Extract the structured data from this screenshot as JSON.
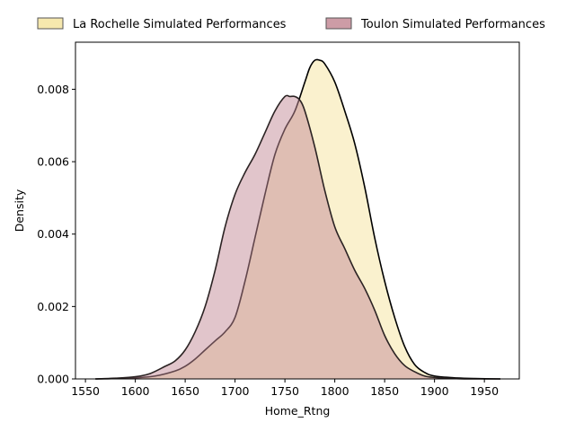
{
  "chart_data": {
    "type": "area",
    "xlabel": "Home_Rtng",
    "ylabel": "Density",
    "xlim": [
      1540,
      1985
    ],
    "ylim": [
      0,
      0.0093
    ],
    "xticks": [
      1550,
      1600,
      1650,
      1700,
      1750,
      1800,
      1850,
      1900,
      1950
    ],
    "yticks": [
      0.0,
      0.002,
      0.004,
      0.006,
      0.008
    ],
    "ytick_labels": [
      "0.000",
      "0.002",
      "0.004",
      "0.006",
      "0.008"
    ],
    "grid": false,
    "legend_placement": "top, above plot, horizontal",
    "series": [
      {
        "name": "La Rochelle Simulated Performances",
        "fill": "#f5e5a5",
        "fill_opacity": 0.55,
        "stroke": "#000000",
        "x": [
          1560,
          1580,
          1600,
          1620,
          1640,
          1650,
          1660,
          1670,
          1680,
          1690,
          1700,
          1710,
          1720,
          1730,
          1740,
          1750,
          1760,
          1770,
          1775,
          1780,
          1785,
          1790,
          1800,
          1810,
          1820,
          1830,
          1840,
          1850,
          1860,
          1870,
          1880,
          1890,
          1900,
          1920,
          1940,
          1966
        ],
        "y": [
          0.0,
          1e-05,
          3e-05,
          8e-05,
          0.00022,
          0.00035,
          0.00055,
          0.0008,
          0.00105,
          0.0013,
          0.0017,
          0.0027,
          0.0039,
          0.0051,
          0.0062,
          0.0069,
          0.0074,
          0.0082,
          0.0086,
          0.0088,
          0.0088,
          0.0087,
          0.0082,
          0.0074,
          0.0065,
          0.0053,
          0.0039,
          0.0027,
          0.0017,
          0.0009,
          0.0004,
          0.00018,
          8e-05,
          3e-05,
          1e-05,
          0.0
        ]
      },
      {
        "name": "Toulon Simulated Performances",
        "fill": "#c48b97",
        "fill_opacity": 0.5,
        "stroke": "#2b2323",
        "x": [
          1560,
          1580,
          1600,
          1615,
          1630,
          1640,
          1650,
          1660,
          1670,
          1680,
          1690,
          1700,
          1710,
          1720,
          1730,
          1740,
          1750,
          1755,
          1760,
          1765,
          1770,
          1780,
          1790,
          1800,
          1810,
          1820,
          1830,
          1840,
          1850,
          1860,
          1870,
          1880,
          1890,
          1900,
          1920,
          1940,
          1966
        ],
        "y": [
          0.0,
          2e-05,
          6e-05,
          0.00015,
          0.00035,
          0.0005,
          0.0008,
          0.0013,
          0.002,
          0.003,
          0.0042,
          0.0051,
          0.0057,
          0.0062,
          0.0068,
          0.0074,
          0.0078,
          0.0078,
          0.0078,
          0.0077,
          0.0074,
          0.0064,
          0.0052,
          0.0042,
          0.0036,
          0.003,
          0.0025,
          0.0019,
          0.0012,
          0.0007,
          0.00037,
          0.0002,
          8e-05,
          4e-05,
          1e-05,
          0.0,
          0.0
        ]
      }
    ]
  }
}
